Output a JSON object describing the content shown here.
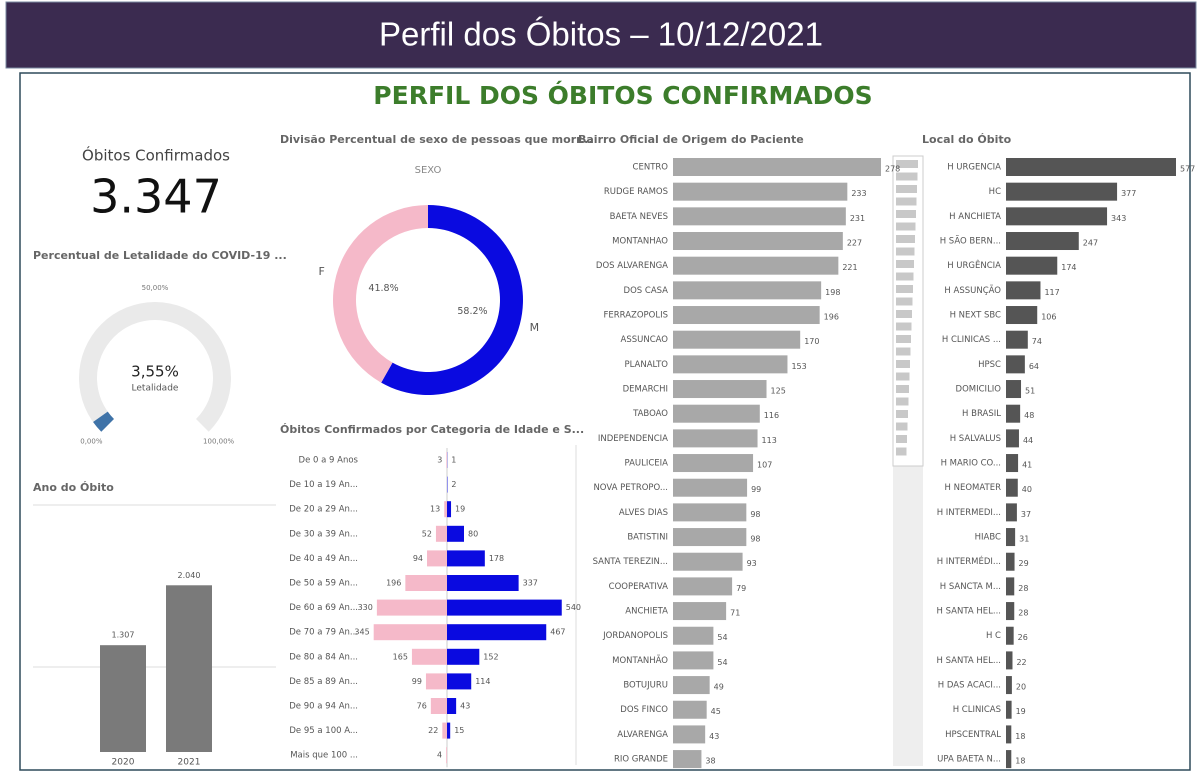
{
  "header": {
    "title": "Perfil dos Óbitos – 10/12/2021"
  },
  "panel_title": "PERFIL DOS ÓBITOS CONFIRMADOS",
  "kpi": {
    "label": "Óbitos Confirmados",
    "value": "3.347"
  },
  "chart_data": [
    {
      "type": "gauge",
      "title": "Percentual de Letalidade do COVID-19 ...",
      "label": "Letalidade",
      "values": [
        3.55
      ],
      "value_labels": [
        "3,55%"
      ],
      "color": "#3f73a8",
      "ylim": [
        0,
        100
      ],
      "yticks": [
        {
          "value": 0,
          "label": "0,00%"
        },
        {
          "value": 50,
          "label": "50,00%"
        },
        {
          "value": 100,
          "label": "100,00%"
        }
      ]
    },
    {
      "type": "bar",
      "title": "Ano do Óbito",
      "categories": [
        "2020",
        "2021"
      ],
      "values": [
        1307,
        2040
      ],
      "value_labels": [
        "1.307",
        "2.040"
      ],
      "color": "#7a7a7a",
      "ylim": [
        0,
        2900
      ]
    },
    {
      "type": "pie",
      "title": "Divisão Percentual de sexo de pessoas que morr...",
      "subtitle": "SEXO",
      "categories": [
        "F",
        "M"
      ],
      "values": [
        41.8,
        58.2
      ],
      "value_labels": [
        "41.8%",
        "58.2%"
      ],
      "colors": [
        "#f5b9c9",
        "#0a0ae0"
      ]
    },
    {
      "type": "butterfly",
      "title": "Óbitos Confirmados por Categoria de Idade e S...",
      "categories": [
        "De 0 a 9 Anos",
        "De 10 a 19 An...",
        "De 20 a 29 An...",
        "De 30 a 39 An...",
        "De 40 a 49 An...",
        "De 50 a 59 An...",
        "De 60 a 69 An...",
        "De 70 a 79 An...",
        "De 80 a 84 An...",
        "De 85 a 89 An...",
        "De 90 a 94 An...",
        "De 95 a 100 A...",
        "Mais que 100 ..."
      ],
      "series": [
        {
          "color": "#f5b9c9",
          "values": [
            3,
            null,
            13,
            52,
            94,
            196,
            330,
            345,
            165,
            99,
            76,
            22,
            4
          ]
        },
        {
          "color": "#0a0ae0",
          "values": [
            1,
            2,
            19,
            80,
            178,
            337,
            540,
            467,
            152,
            114,
            43,
            15,
            null
          ]
        }
      ],
      "xlim": [
        0,
        560
      ]
    },
    {
      "type": "hbar",
      "title": "Bairro Oficial de Origem do Paciente",
      "categories": [
        "CENTRO",
        "RUDGE RAMOS",
        "BAETA NEVES",
        "MONTANHAO",
        "DOS ALVARENGA",
        "DOS CASA",
        "FERRAZOPOLIS",
        "ASSUNCAO",
        "PLANALTO",
        "DEMARCHI",
        "TABOAO",
        "INDEPENDENCIA",
        "PAULICEIA",
        "NOVA PETROPO...",
        "ALVES DIAS",
        "BATISTINI",
        "SANTA TEREZIN...",
        "COOPERATIVA",
        "ANCHIETA",
        "JORDANOPOLIS",
        "MONTANHÃO",
        "BOTUJURU",
        "DOS FINCO",
        "ALVARENGA",
        "RIO GRANDE"
      ],
      "values": [
        278,
        233,
        231,
        227,
        221,
        198,
        196,
        170,
        153,
        125,
        116,
        113,
        107,
        99,
        98,
        98,
        93,
        79,
        71,
        54,
        54,
        49,
        45,
        43,
        38
      ],
      "color": "#a8a8a8",
      "xlim": [
        0,
        278
      ]
    },
    {
      "type": "hbar",
      "title": "Local do Óbito",
      "categories": [
        "H URGENCIA",
        "HC",
        "H ANCHIETA",
        "H SÃO BERN...",
        "H URGÊNCIA",
        "H ASSUNÇÃO",
        "H NEXT SBC",
        "H CLINICAS ...",
        "HPSC",
        "DOMICILIO",
        "H BRASIL",
        "H SALVALUS",
        "H MARIO CO...",
        "H NEOMATER",
        "H INTERMEDI...",
        "HIABC",
        "H INTERMÉDI...",
        "H SANCTA M...",
        "H SANTA HEL...",
        "H C",
        "H SANTA HEL...",
        "H DAS ACACI...",
        "H CLINICAS",
        "HPSCENTRAL",
        "UPA BAETA N..."
      ],
      "values": [
        577,
        377,
        343,
        247,
        174,
        117,
        106,
        74,
        64,
        51,
        48,
        44,
        41,
        40,
        37,
        31,
        29,
        28,
        28,
        26,
        22,
        20,
        19,
        18,
        18
      ],
      "color": "#555555",
      "xlim": [
        0,
        577
      ]
    }
  ]
}
